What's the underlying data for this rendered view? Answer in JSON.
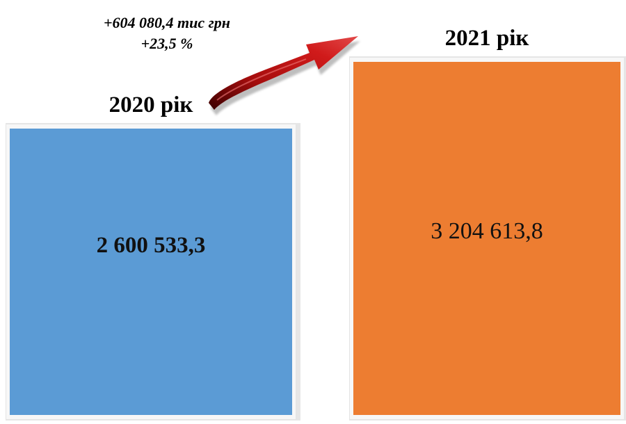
{
  "change": {
    "amount": "+604 080,4 тис грн",
    "percent": "+23,5 %"
  },
  "chart_data": {
    "type": "bar",
    "categories": [
      "2020 рік",
      "2021 рік"
    ],
    "values": [
      2600533.3,
      3204613.8
    ],
    "value_labels": [
      "2 600 533,3",
      "3 204 613,8"
    ],
    "title": "",
    "xlabel": "",
    "ylabel": "",
    "colors": [
      "#5b9bd5",
      "#ed7d31"
    ]
  }
}
